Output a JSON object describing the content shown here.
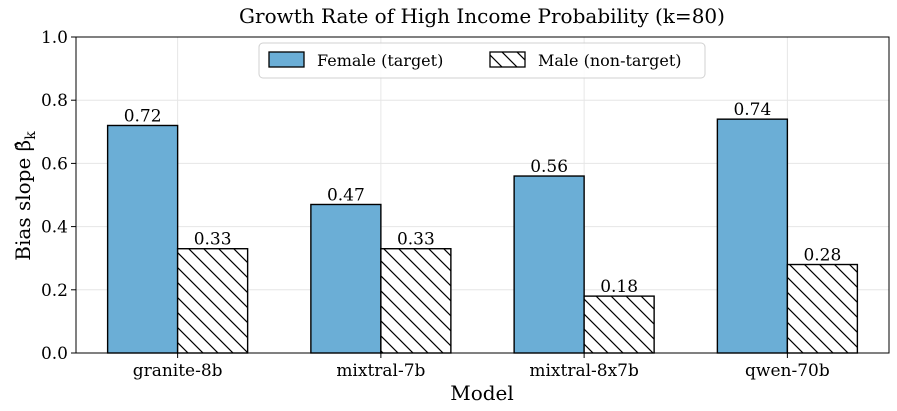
{
  "chart_data": {
    "type": "bar",
    "title": "Growth Rate of High Income Probability (k=80)",
    "xlabel": "Model",
    "ylabel_main": "Bias slope ",
    "ylabel_symbol": "β̂",
    "ylabel_subscript": "k",
    "categories": [
      "granite-8b",
      "mixtral-7b",
      "mixtral-8x7b",
      "qwen-70b"
    ],
    "ylim": [
      0,
      1.0
    ],
    "yticks": [
      "0.0",
      "0.2",
      "0.4",
      "0.6",
      "0.8",
      "1.0"
    ],
    "grid": true,
    "legend_position": "top-center",
    "series": [
      {
        "name": "Female (target)",
        "values": [
          0.72,
          0.47,
          0.56,
          0.74
        ],
        "value_labels": [
          "0.72",
          "0.47",
          "0.56",
          "0.74"
        ],
        "color": "#6baed6",
        "fill": "solid"
      },
      {
        "name": "Male (non-target)",
        "values": [
          0.33,
          0.33,
          0.18,
          0.28
        ],
        "value_labels": [
          "0.33",
          "0.33",
          "0.18",
          "0.28"
        ],
        "color": "#ffffff",
        "fill": "hatch"
      }
    ]
  }
}
